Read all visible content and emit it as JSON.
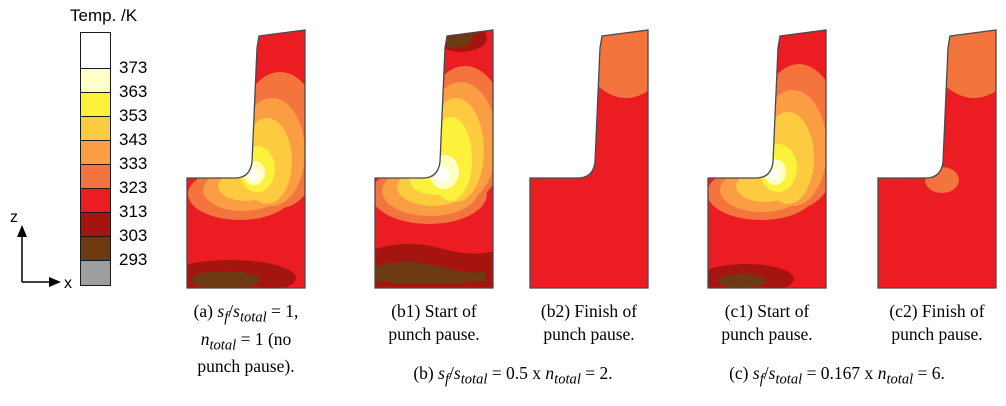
{
  "legend": {
    "title": "Temp. /K",
    "labels": [
      "373",
      "363",
      "353",
      "343",
      "333",
      "323",
      "313",
      "303",
      "293"
    ]
  },
  "palette": {
    "white": "#FFFFFF",
    "pale_yellow": "#FFFFC8",
    "yellow": "#FCF23C",
    "gold": "#FDCB3F",
    "light_orange": "#FA9D43",
    "orange": "#F3743C",
    "red": "#EB1C22",
    "dark_red": "#A61410",
    "brown": "#6D3A12",
    "gray": "#9E9E9E"
  },
  "axis": {
    "z": "z",
    "x": "x"
  },
  "captions": {
    "a": "(a) <i>s<sub>f</sub></i>/<i>s<sub>total</sub></i> = 1,<br><i>n<sub>total</sub></i> = 1 (no<br>punch pause).",
    "b1": "(b1) Start of<br>punch pause.",
    "b2": "(b2) Finish of<br>punch pause.",
    "b": "(b) <i>s<sub>f</sub></i>/<i>s<sub>total</sub></i> = 0.5 x <i>n<sub>total</sub></i> = 2.",
    "c1": "(c1) Start of<br>punch pause.",
    "c2": "(c2) Finish of<br>punch pause.",
    "c": "(c) <i>s<sub>f</sub></i>/<i>s<sub>total</sub></i> = 0.167 x <i>n<sub>total</sub></i> = 6."
  },
  "chart_data": {
    "type": "heatmap",
    "title": "Temperature contour plots of formed part cross-sections for different punch pause schedules",
    "colorbar": {
      "title": "Temp. /K",
      "tick_labels": [
        373,
        363,
        353,
        343,
        333,
        323,
        313,
        303,
        293
      ],
      "band_colors_top_to_bottom": [
        "#FFFFFF",
        "#FFFFC8",
        "#FCF23C",
        "#FDCB3F",
        "#FA9D43",
        "#F3743C",
        "#EB1C22",
        "#A61410",
        "#6D3A12",
        "#9E9E9E"
      ],
      "range_K": [
        293,
        373
      ]
    },
    "axes": {
      "horizontal": "x",
      "vertical": "z"
    },
    "panels": [
      {
        "id": "a",
        "caption": "(a) sf/stotal = 1, ntotal = 1 (no punch pause).",
        "peak_zone": "white/yellow hot spot at inner corner, brown cool zone at bottom"
      },
      {
        "id": "b1",
        "caption": "(b1) Start of punch pause.",
        "peak_zone": "large yellow/white hot zone at inner corner, brown and dark red bands at bottom and wall top"
      },
      {
        "id": "b2",
        "caption": "(b2) Finish of punch pause.",
        "peak_zone": "mostly red, orange at top of wall"
      },
      {
        "id": "c1",
        "caption": "(c1) Start of punch pause.",
        "peak_zone": "yellow/white hot spot at inner corner, small brown zone at bottom"
      },
      {
        "id": "c2",
        "caption": "(c2) Finish of punch pause.",
        "peak_zone": "mostly red, orange at top of wall"
      }
    ],
    "group_captions": [
      "(b) sf/stotal = 0.5 x ntotal = 2.",
      "(c) sf/stotal = 0.167 x ntotal = 6."
    ]
  }
}
